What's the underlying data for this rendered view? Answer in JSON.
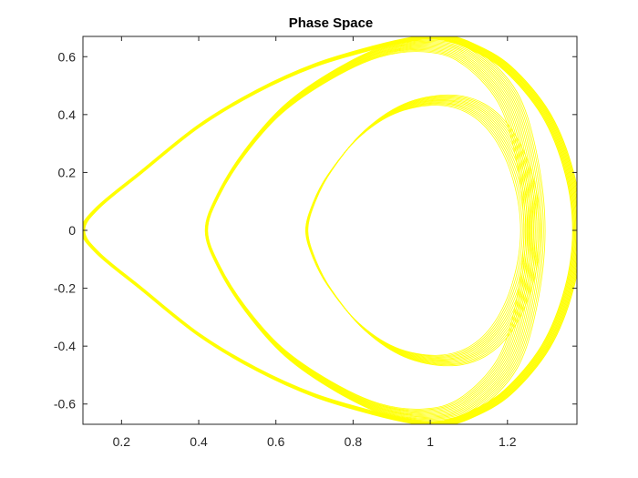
{
  "chart_data": {
    "type": "line",
    "title": "Phase Space",
    "xlabel": "",
    "ylabel": "",
    "xlim": [
      0.1,
      1.38
    ],
    "ylim": [
      -0.67,
      0.67
    ],
    "xticks": [
      0.2,
      0.4,
      0.6,
      0.8,
      1,
      1.2
    ],
    "xtick_labels": [
      "0.2",
      "0.4",
      "0.6",
      "0.8",
      "1",
      "1.2"
    ],
    "yticks": [
      -0.6,
      -0.4,
      -0.2,
      0,
      0.2,
      0.4,
      0.6
    ],
    "ytick_labels": [
      "-0.6",
      "-0.4",
      "-0.2",
      "0",
      "0.2",
      "0.4",
      "0.6"
    ],
    "grid": false,
    "line_color": "#ffff00",
    "series": [
      {
        "orbit": "outer",
        "x": [
          1.38,
          1.36,
          1.3,
          1.2,
          1.1,
          1.02,
          0.95,
          0.85,
          0.7,
          0.55,
          0.4,
          0.25,
          0.14,
          0.1,
          0.14,
          0.25,
          0.4,
          0.55,
          0.7,
          0.85,
          0.95,
          1.02,
          1.1,
          1.2,
          1.3,
          1.36,
          1.38
        ],
        "y": [
          0.0,
          0.2,
          0.4,
          0.56,
          0.64,
          0.67,
          0.66,
          0.63,
          0.57,
          0.48,
          0.36,
          0.2,
          0.08,
          0.0,
          -0.08,
          -0.2,
          -0.36,
          -0.48,
          -0.57,
          -0.63,
          -0.66,
          -0.67,
          -0.64,
          -0.56,
          -0.4,
          -0.2,
          0.0
        ]
      },
      {
        "orbit": "middle",
        "x": [
          1.27,
          1.25,
          1.2,
          1.1,
          1.0,
          0.88,
          0.75,
          0.62,
          0.52,
          0.45,
          0.42,
          0.45,
          0.52,
          0.62,
          0.75,
          0.88,
          1.0,
          1.1,
          1.2,
          1.25,
          1.27
        ],
        "y": [
          0.0,
          0.25,
          0.46,
          0.6,
          0.64,
          0.62,
          0.54,
          0.42,
          0.27,
          0.12,
          0.0,
          -0.12,
          -0.27,
          -0.42,
          -0.54,
          -0.62,
          -0.64,
          -0.6,
          -0.46,
          -0.25,
          0.0
        ]
      },
      {
        "orbit": "inner",
        "x": [
          1.26,
          1.24,
          1.19,
          1.12,
          1.03,
          0.92,
          0.82,
          0.74,
          0.7,
          0.68,
          0.7,
          0.74,
          0.82,
          0.92,
          1.03,
          1.12,
          1.19,
          1.24,
          1.26
        ],
        "y": [
          0.0,
          0.18,
          0.33,
          0.42,
          0.45,
          0.42,
          0.33,
          0.2,
          0.1,
          0.0,
          -0.1,
          -0.2,
          -0.33,
          -0.42,
          -0.45,
          -0.42,
          -0.33,
          -0.18,
          0.0
        ]
      }
    ]
  }
}
